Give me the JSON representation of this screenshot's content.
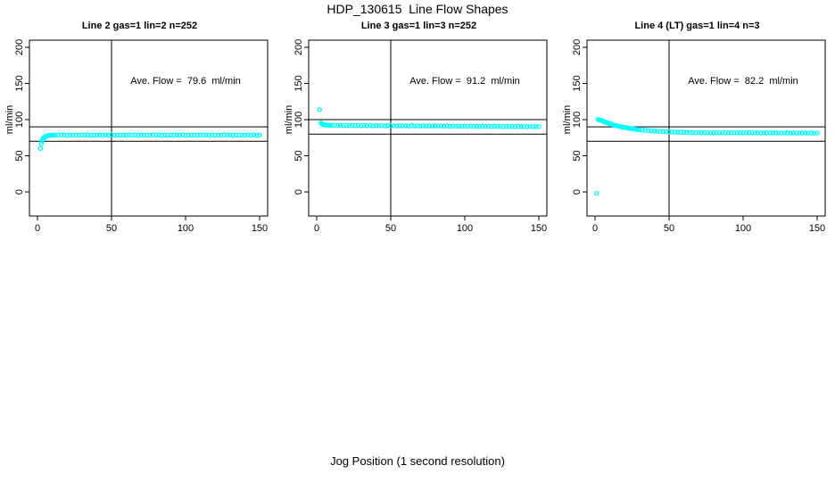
{
  "chart_data": {
    "type": "scatter",
    "title": "HDP_130615  Line Flow Shapes",
    "xlabel": "Jog Position (1 second resolution)",
    "ylabel": "ml/min",
    "x_ticks": [
      0,
      50,
      100,
      150
    ],
    "y_ticks": [
      0,
      50,
      100,
      150,
      200
    ],
    "xlim": [
      0,
      150
    ],
    "ylim": [
      -30,
      210
    ],
    "grid": false,
    "point_color": "#00ffff",
    "axis_color": "#000000",
    "panels": [
      {
        "title": "Line 2 gas=1 lin=2 n=252",
        "annotation": "Ave. Flow =  79.6  ml/min",
        "ave_flow_ml_min": 79.6,
        "n_points": 252,
        "ref_lines_y": [
          90,
          70
        ],
        "vline_x": 50,
        "points": [
          [
            2,
            60
          ],
          [
            2.6,
            66.5
          ],
          [
            3,
            70.2
          ],
          [
            3.5,
            72.6
          ],
          [
            4,
            74.2
          ],
          [
            4.5,
            75.3
          ],
          [
            5,
            76.1
          ],
          [
            5.5,
            76.7
          ],
          [
            6,
            77.2
          ],
          [
            6.5,
            77.5
          ],
          [
            7,
            77.8
          ],
          [
            7.5,
            78
          ],
          [
            8,
            78.2
          ],
          [
            9,
            78.4
          ],
          [
            10,
            78.5
          ],
          [
            11,
            78.6
          ],
          [
            12,
            78.3
          ],
          [
            14,
            78.9
          ],
          [
            16,
            78.5
          ],
          [
            18,
            79
          ],
          [
            20,
            78.2
          ],
          [
            22,
            78.7
          ],
          [
            24,
            78.4
          ],
          [
            26,
            78.8
          ],
          [
            28,
            78.3
          ],
          [
            30,
            78.9
          ],
          [
            32,
            78.5
          ],
          [
            34,
            79
          ],
          [
            36,
            78.2
          ],
          [
            38,
            78.7
          ],
          [
            40,
            78.4
          ],
          [
            42,
            78.8
          ],
          [
            44,
            78.3
          ],
          [
            46,
            78.9
          ],
          [
            48,
            78.5
          ],
          [
            50,
            79
          ],
          [
            52,
            78.2
          ],
          [
            54,
            78.7
          ],
          [
            56,
            78.4
          ],
          [
            58,
            78.8
          ],
          [
            60,
            78.3
          ],
          [
            62,
            78.9
          ],
          [
            64,
            78.5
          ],
          [
            66,
            79
          ],
          [
            68,
            78.2
          ],
          [
            70,
            78.7
          ],
          [
            72,
            78.4
          ],
          [
            74,
            78.8
          ],
          [
            76,
            78.3
          ],
          [
            78,
            78.9
          ],
          [
            80,
            78.5
          ],
          [
            82,
            79
          ],
          [
            84,
            78.2
          ],
          [
            86,
            78.7
          ],
          [
            88,
            78.4
          ],
          [
            90,
            78.8
          ],
          [
            92,
            78.3
          ],
          [
            94,
            78.9
          ],
          [
            96,
            78.5
          ],
          [
            98,
            79
          ],
          [
            100,
            78.2
          ],
          [
            102,
            78.7
          ],
          [
            104,
            78.4
          ],
          [
            106,
            78.8
          ],
          [
            108,
            78.3
          ],
          [
            110,
            78.9
          ],
          [
            112,
            78.5
          ],
          [
            114,
            79
          ],
          [
            116,
            78.2
          ],
          [
            118,
            78.7
          ],
          [
            120,
            78.4
          ],
          [
            122,
            78.8
          ],
          [
            124,
            78.3
          ],
          [
            126,
            78.9
          ],
          [
            128,
            78.5
          ],
          [
            130,
            79
          ],
          [
            132,
            78.2
          ],
          [
            134,
            78.7
          ],
          [
            136,
            78.4
          ],
          [
            138,
            78.8
          ],
          [
            140,
            78.3
          ],
          [
            142,
            78.9
          ],
          [
            144,
            78.5
          ],
          [
            146,
            79
          ],
          [
            148,
            78.2
          ],
          [
            150,
            78.6
          ]
        ]
      },
      {
        "title": "Line 3 gas=1 lin=3 n=252",
        "annotation": "Ave. Flow =  91.2  ml/min",
        "ave_flow_ml_min": 91.2,
        "n_points": 252,
        "ref_lines_y": [
          100,
          80
        ],
        "vline_x": 50,
        "points": [
          [
            2,
            114
          ],
          [
            3,
            95.3
          ],
          [
            3.5,
            94.3
          ],
          [
            4,
            93.6
          ],
          [
            4.5,
            93.2
          ],
          [
            5,
            92.9
          ],
          [
            5.5,
            92.7
          ],
          [
            6,
            92.5
          ],
          [
            7,
            92.3
          ],
          [
            8,
            92.2
          ],
          [
            9,
            92.1
          ],
          [
            10,
            92
          ],
          [
            12,
            92.1
          ],
          [
            14,
            91.8
          ],
          [
            16,
            92.2
          ],
          [
            18,
            91.7
          ],
          [
            20,
            92
          ],
          [
            22,
            91.6
          ],
          [
            24,
            92.1
          ],
          [
            26,
            91.7
          ],
          [
            28,
            91.9
          ],
          [
            30,
            91.5
          ],
          [
            32,
            92
          ],
          [
            34,
            91.6
          ],
          [
            36,
            91.8
          ],
          [
            38,
            91.4
          ],
          [
            40,
            91.9
          ],
          [
            42,
            91.5
          ],
          [
            44,
            91.7
          ],
          [
            46,
            91.3
          ],
          [
            48,
            91.8
          ],
          [
            50,
            91.4
          ],
          [
            52,
            91.6
          ],
          [
            54,
            91.2
          ],
          [
            56,
            91.7
          ],
          [
            58,
            91.3
          ],
          [
            60,
            91.5
          ],
          [
            62,
            91.1
          ],
          [
            64,
            91.6
          ],
          [
            66,
            91.2
          ],
          [
            68,
            91.4
          ],
          [
            70,
            91
          ],
          [
            72,
            91.5
          ],
          [
            74,
            91.1
          ],
          [
            76,
            91.3
          ],
          [
            78,
            90.9
          ],
          [
            80,
            91.4
          ],
          [
            82,
            91
          ],
          [
            84,
            91.2
          ],
          [
            86,
            90.8
          ],
          [
            88,
            91.3
          ],
          [
            90,
            90.9
          ],
          [
            92,
            91.1
          ],
          [
            94,
            90.7
          ],
          [
            96,
            91.2
          ],
          [
            98,
            90.8
          ],
          [
            100,
            91
          ],
          [
            102,
            90.6
          ],
          [
            104,
            91.1
          ],
          [
            106,
            90.7
          ],
          [
            108,
            90.9
          ],
          [
            110,
            90.5
          ],
          [
            112,
            91
          ],
          [
            114,
            90.6
          ],
          [
            116,
            90.8
          ],
          [
            118,
            90.4
          ],
          [
            120,
            90.9
          ],
          [
            122,
            90.5
          ],
          [
            124,
            90.7
          ],
          [
            126,
            90.3
          ],
          [
            128,
            90.8
          ],
          [
            130,
            90.4
          ],
          [
            132,
            90.6
          ],
          [
            134,
            90.2
          ],
          [
            136,
            90.7
          ],
          [
            138,
            90.3
          ],
          [
            140,
            90.5
          ],
          [
            142,
            90.1
          ],
          [
            144,
            90.6
          ],
          [
            146,
            90.2
          ],
          [
            148,
            90.4
          ],
          [
            150,
            90.3
          ]
        ]
      },
      {
        "title": "Line 4 (LT) gas=1 lin=4 n=3",
        "annotation": "Ave. Flow =  82.2  ml/min",
        "ave_flow_ml_min": 82.2,
        "n_points": 3,
        "ref_lines_y": [
          90,
          70
        ],
        "vline_x": 50,
        "points": [
          [
            1,
            -2
          ],
          [
            2,
            100.2
          ],
          [
            2.5,
            100
          ],
          [
            3,
            99.7
          ],
          [
            3.5,
            99.4
          ],
          [
            4,
            99
          ],
          [
            4.5,
            98.6
          ],
          [
            5,
            98.2
          ],
          [
            5.5,
            97.8
          ],
          [
            6,
            97.4
          ],
          [
            6.5,
            97
          ],
          [
            7,
            96.6
          ],
          [
            7.5,
            96.2
          ],
          [
            8,
            95.8
          ],
          [
            8.5,
            95.4
          ],
          [
            9,
            95
          ],
          [
            9.5,
            94.7
          ],
          [
            10,
            94.3
          ],
          [
            11,
            93.7
          ],
          [
            12,
            93
          ],
          [
            13,
            92.4
          ],
          [
            14,
            91.9
          ],
          [
            15,
            91.3
          ],
          [
            16,
            90.8
          ],
          [
            17,
            90.4
          ],
          [
            18,
            89.9
          ],
          [
            19,
            89.5
          ],
          [
            20,
            89.1
          ],
          [
            21,
            88.7
          ],
          [
            22,
            88.4
          ],
          [
            23,
            88
          ],
          [
            24,
            87.7
          ],
          [
            25,
            87.4
          ],
          [
            26,
            87.1
          ],
          [
            27,
            86.8
          ],
          [
            28,
            86.5
          ],
          [
            29,
            86.3
          ],
          [
            30,
            86
          ],
          [
            32,
            85.6
          ],
          [
            34,
            85.2
          ],
          [
            36,
            84.8
          ],
          [
            38,
            84.5
          ],
          [
            40,
            84.2
          ],
          [
            42,
            83.9
          ],
          [
            44,
            83.7
          ],
          [
            46,
            83.5
          ],
          [
            48,
            83.3
          ],
          [
            50,
            83.1
          ],
          [
            52,
            82.9
          ],
          [
            54,
            82.8
          ],
          [
            56,
            82.6
          ],
          [
            58,
            82.5
          ],
          [
            60,
            82.4
          ],
          [
            62,
            82.3
          ],
          [
            64,
            82.2
          ],
          [
            66,
            82.1
          ],
          [
            68,
            82
          ],
          [
            70,
            82.2
          ],
          [
            72,
            81.9
          ],
          [
            74,
            82.1
          ],
          [
            76,
            81.8
          ],
          [
            78,
            82
          ],
          [
            80,
            81.9
          ],
          [
            82,
            82.1
          ],
          [
            84,
            81.8
          ],
          [
            86,
            82
          ],
          [
            88,
            81.7
          ],
          [
            90,
            81.9
          ],
          [
            92,
            81.8
          ],
          [
            94,
            82
          ],
          [
            96,
            81.7
          ],
          [
            98,
            81.9
          ],
          [
            100,
            81.6
          ],
          [
            102,
            81.8
          ],
          [
            104,
            81.7
          ],
          [
            106,
            81.9
          ],
          [
            108,
            81.6
          ],
          [
            110,
            81.8
          ],
          [
            112,
            81.5
          ],
          [
            114,
            81.7
          ],
          [
            116,
            81.6
          ],
          [
            118,
            81.8
          ],
          [
            120,
            81.5
          ],
          [
            122,
            81.7
          ],
          [
            124,
            81.4
          ],
          [
            126,
            81.6
          ],
          [
            128,
            81.5
          ],
          [
            130,
            81.7
          ],
          [
            132,
            81.4
          ],
          [
            134,
            81.6
          ],
          [
            136,
            81.3
          ],
          [
            138,
            81.5
          ],
          [
            140,
            81.4
          ],
          [
            142,
            81.6
          ],
          [
            144,
            81.3
          ],
          [
            146,
            81.5
          ],
          [
            148,
            81.2
          ],
          [
            150,
            81.4
          ]
        ]
      }
    ]
  }
}
